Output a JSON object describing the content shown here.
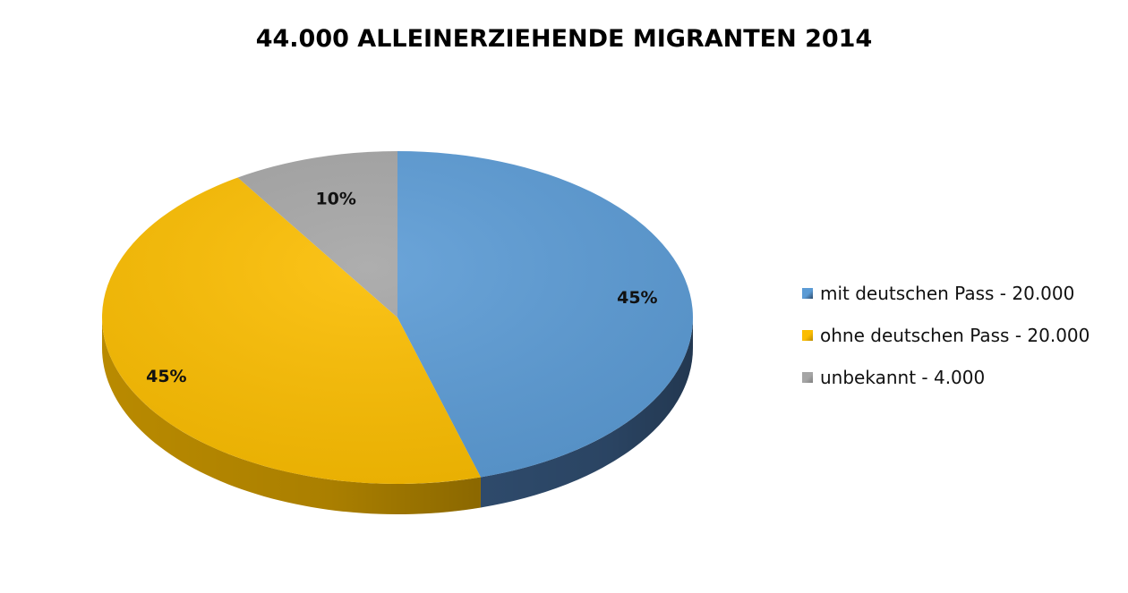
{
  "chart_data": {
    "type": "pie",
    "title": "44.000 ALLEINERZIEHENDE MIGRANTEN 2014",
    "slices": [
      {
        "label": "mit deutschen Pass - 20.000",
        "value": 20000,
        "percent_label": "45%",
        "color": "#5b9bd5",
        "side_color": "#2e4a6b"
      },
      {
        "label": "ohne deutschen Pass - 20.000",
        "value": 20000,
        "percent_label": "45%",
        "color": "#fbbd00",
        "side_color": "#b98a00"
      },
      {
        "label": "unbekannt - 4.000",
        "value": 4000,
        "percent_label": "10%",
        "color": "#a5a5a5",
        "side_color": "#7f7f7f"
      }
    ],
    "legend_position": "right",
    "style": "3d"
  }
}
